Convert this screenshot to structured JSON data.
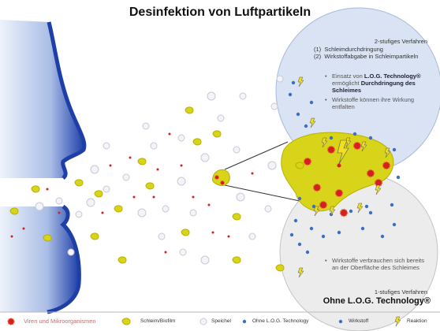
{
  "title": "Desinfektion von Luftpartikeln",
  "top_panel": {
    "heading": "2-stufiges Verfahren",
    "steps": [
      "(1)  Schleimdurchdringung",
      "(2)  Wirkstoffabgabe in Schleimpartikeln"
    ],
    "bullets": [
      {
        "parts": [
          {
            "text": "Einsatz von ",
            "bold": false
          },
          {
            "text": "L.O.G. Technology®",
            "bold": true
          },
          {
            "text": " ermöglicht ",
            "bold": false
          },
          {
            "text": "Durchdringung des Schleimes",
            "bold": true
          }
        ]
      },
      {
        "parts": [
          {
            "text": "Wirkstoffe können ihre Wirkung entfalten",
            "bold": false
          }
        ]
      }
    ]
  },
  "bottom_panel": {
    "bullets": [
      {
        "parts": [
          {
            "text": "Wirkstoffe verbrauchen sich bereits an der Oberfläche des Schleimes",
            "bold": false
          }
        ]
      }
    ],
    "heading": "1-stufiges Verfahren",
    "subheading": "Ohne L.O.G. Technology®"
  },
  "legend": [
    "Viren und Mikroorganismen",
    "Schleim/Biofilm",
    "Speichel",
    "Ohne L.O.G. Technology",
    "Wirkstoff",
    "Reaktion"
  ]
}
